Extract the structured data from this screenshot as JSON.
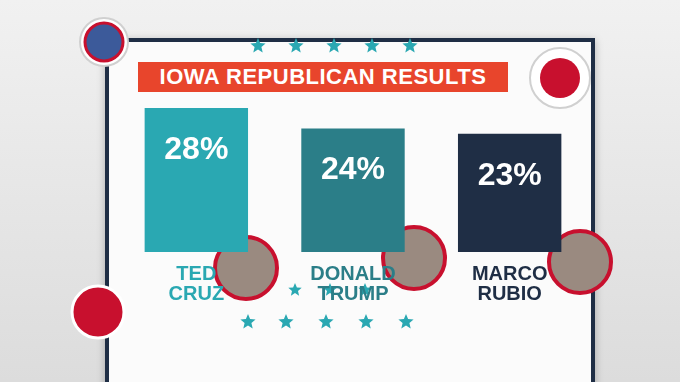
{
  "chart_data": {
    "type": "bar",
    "title": "IOWA REPUBLICAN RESULTS",
    "categories": [
      "TED CRUZ",
      "DONALD TRUMP",
      "MARCO RUBIO"
    ],
    "values": [
      28,
      24,
      23
    ],
    "value_labels": [
      "28%",
      "24%",
      "23%"
    ],
    "colors": [
      "#2aa8b2",
      "#2b7e88",
      "#1f2e45"
    ],
    "ylim": [
      0,
      28
    ],
    "grid": false,
    "data_labels": true,
    "tick_labels": "x"
  }
}
